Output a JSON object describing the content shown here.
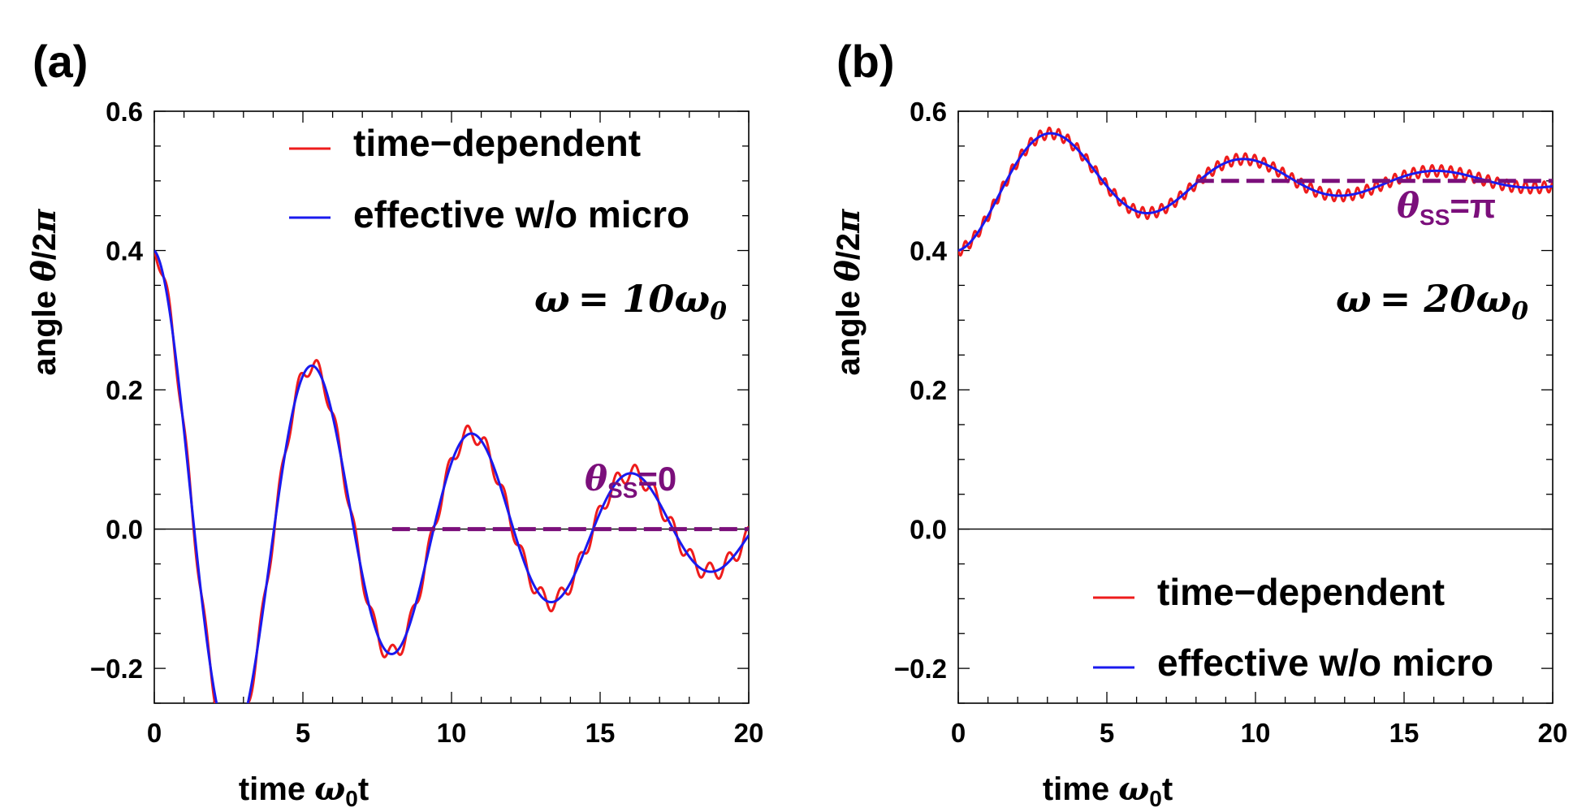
{
  "colors": {
    "time_dependent": "#ee1c1c",
    "effective": "#1a1aee",
    "steady_state": "#7b0f7b",
    "axis": "#000000"
  },
  "chart_data": [
    {
      "type": "line",
      "panel_label": "(a)",
      "xlabel": "time ω₀t",
      "xlabel_parts": [
        "time ",
        "ω",
        "0",
        "t"
      ],
      "ylabel": "angle θ/2π",
      "ylabel_parts": [
        "angle ",
        "θ",
        "/2",
        "π"
      ],
      "xlim": [
        0,
        20
      ],
      "ylim": [
        -0.25,
        0.6
      ],
      "xticks": [
        0,
        5,
        10,
        15,
        20
      ],
      "xtick_labels": [
        "0",
        "5",
        "10",
        "15",
        "20"
      ],
      "yticks": [
        -0.2,
        0.0,
        0.2,
        0.4,
        0.6
      ],
      "ytick_labels": [
        "−0.2",
        "0.0",
        "0.2",
        "0.4",
        "0.6"
      ],
      "grid": false,
      "legend_position": "top-right",
      "frequency_parts": [
        "ω",
        "= 10",
        "ω",
        "0"
      ],
      "steady_state": {
        "label_parts": [
          "θ",
          "SS",
          "=0"
        ],
        "value": 0.0,
        "x_start": 8,
        "x_end": 20
      },
      "series": [
        {
          "name": "time−dependent",
          "model": "damped_oscillation_with_micromotion",
          "amplitude": 0.4,
          "decay": 0.1,
          "omega": 1.17,
          "offset": 0.0,
          "micro_amplitude": 0.013,
          "micro_frequency": 10,
          "x_range": [
            0,
            20
          ]
        },
        {
          "name": "effective w/o micro",
          "model": "damped_oscillation",
          "amplitude": 0.4,
          "decay": 0.1,
          "omega": 1.17,
          "offset": 0.0,
          "x_range": [
            0,
            20
          ]
        }
      ]
    },
    {
      "type": "line",
      "panel_label": "(b)",
      "xlabel": "time ω₀t",
      "xlabel_parts": [
        "time ",
        "ω",
        "0",
        "t"
      ],
      "ylabel": "angle θ/2π",
      "ylabel_parts": [
        "angle ",
        "θ",
        "/2",
        "π"
      ],
      "xlim": [
        0,
        20
      ],
      "ylim": [
        -0.25,
        0.6
      ],
      "xticks": [
        0,
        5,
        10,
        15,
        20
      ],
      "xtick_labels": [
        "0",
        "5",
        "10",
        "15",
        "20"
      ],
      "yticks": [
        -0.2,
        0.0,
        0.2,
        0.4,
        0.6
      ],
      "ytick_labels": [
        "−0.2",
        "0.0",
        "0.2",
        "0.4",
        "0.6"
      ],
      "grid": false,
      "legend_position": "bottom-right",
      "frequency_parts": [
        "ω",
        "= 20",
        "ω",
        "0"
      ],
      "steady_state": {
        "label_parts": [
          "θ",
          "SS",
          "=π"
        ],
        "value": 0.5,
        "x_start": 8,
        "x_end": 20
      },
      "series": [
        {
          "name": "time−dependent",
          "model": "damped_oscillation_with_micromotion",
          "amplitude": -0.1,
          "decay": 0.12,
          "omega": 0.97,
          "offset": 0.5,
          "micro_amplitude": 0.008,
          "micro_frequency": 20,
          "x_range": [
            0,
            20
          ]
        },
        {
          "name": "effective w/o micro",
          "model": "damped_oscillation",
          "amplitude": -0.1,
          "decay": 0.12,
          "omega": 0.97,
          "offset": 0.5,
          "x_range": [
            0,
            20
          ]
        }
      ]
    }
  ]
}
